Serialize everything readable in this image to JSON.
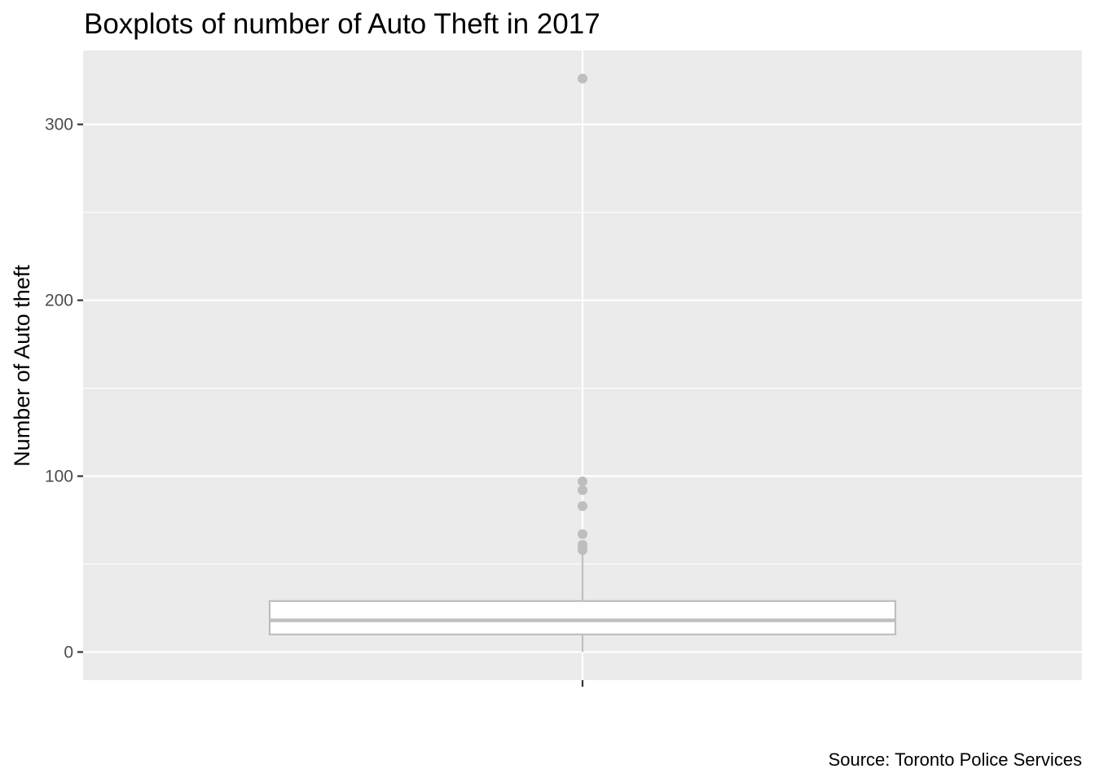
{
  "chart_data": {
    "type": "boxplot",
    "title": "Boxplots of number of Auto Theft in 2017",
    "xlabel": "",
    "ylabel": "Number of Auto theft",
    "caption": "Source: Toronto Police Services",
    "ylim": [
      -16,
      342
    ],
    "y_ticks": [
      0,
      100,
      200,
      300
    ],
    "y_minor_ticks": [
      50,
      150,
      250
    ],
    "grid": true,
    "box": {
      "min": 0,
      "q1": 10,
      "median": 18,
      "q3": 29,
      "whisker_high": 57,
      "outliers": [
        58,
        60,
        61,
        67,
        83,
        92,
        97,
        326
      ]
    },
    "colors": {
      "panel_background": "#ebebeb",
      "grid": "#ffffff",
      "box_fill": "#ffffff",
      "box_stroke": "#bebebe",
      "outlier": "#bebebe",
      "tick_text": "#4d4d4d",
      "tick_mark": "#333333"
    }
  }
}
